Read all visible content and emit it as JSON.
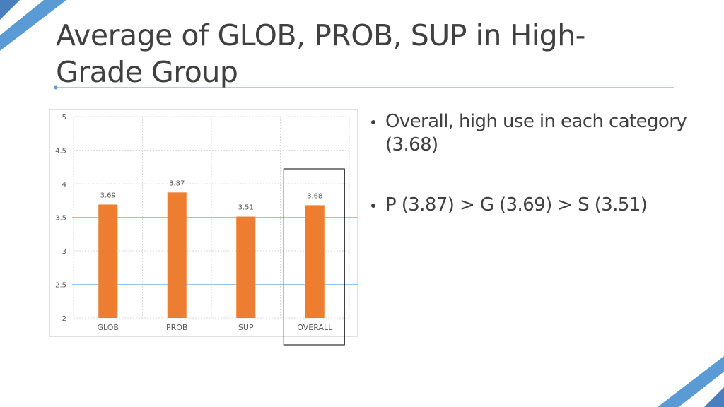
{
  "slide": {
    "title": "Average of GLOB, PROB, SUP in High-Grade Group",
    "bullets": [
      "Overall, high use in each category (3.68)",
      "P (3.87) > G (3.69) > S (3.51)"
    ]
  },
  "colors": {
    "accent": "#5b9bd5",
    "bar": "#ed7d31",
    "text": "#404040",
    "axis_text": "#595959",
    "gridline": "#d9d9d9"
  },
  "chart_data": {
    "type": "bar",
    "categories": [
      "GLOB",
      "PROB",
      "SUP",
      "OVERALL"
    ],
    "values": [
      3.69,
      3.87,
      3.51,
      3.68
    ],
    "data_labels": [
      "3.69",
      "3.87",
      "3.51",
      "3.68"
    ],
    "yticks": [
      "2",
      "2.5",
      "3",
      "3.5",
      "4",
      "4.5",
      "5"
    ],
    "ylim": [
      2,
      5
    ],
    "grid": true,
    "reference_lines": [
      2.5,
      3.5
    ],
    "highlighted_category": "OVERALL",
    "title": "",
    "xlabel": "",
    "ylabel": ""
  }
}
